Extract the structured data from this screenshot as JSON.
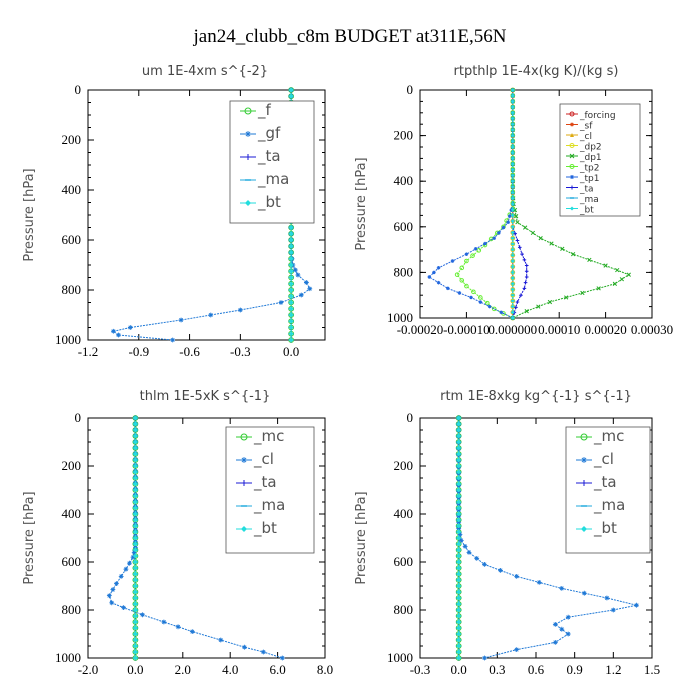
{
  "title": "jan24_clubb_c8m  BUDGET at311E,56N",
  "chart_data": [
    {
      "type": "line",
      "title": "um   1E-4xm  s^{-2}",
      "ylabel": "Pressure [hPa]",
      "xticks": [
        "-1.2",
        "-0.9",
        "-0.6",
        "-0.3",
        "0.0"
      ],
      "xlim": [
        -1.2,
        0.2
      ],
      "yticks": [
        "0",
        "200",
        "400",
        "600",
        "800",
        "1000"
      ],
      "ylim": [
        0,
        1000
      ],
      "legend_position": "top-right",
      "series": [
        {
          "name": "_f",
          "color": "#33cc33",
          "marker": "circle",
          "points": [
            [
              0.0,
              0
            ],
            [
              0.0,
              200
            ],
            [
              0.0,
              400
            ],
            [
              0.0,
              600
            ],
            [
              0.0,
              800
            ],
            [
              0.0,
              1000
            ]
          ]
        },
        {
          "name": "_gf",
          "color": "#1e78d6",
          "marker": "star",
          "points": [
            [
              0.0,
              0
            ],
            [
              0.0,
              500
            ],
            [
              0.0,
              650
            ],
            [
              0.01,
              700
            ],
            [
              0.04,
              740
            ],
            [
              0.09,
              770
            ],
            [
              0.11,
              795
            ],
            [
              0.06,
              820
            ],
            [
              -0.06,
              850
            ],
            [
              -0.3,
              880
            ],
            [
              -0.65,
              920
            ],
            [
              -0.95,
              950
            ],
            [
              -1.05,
              965
            ],
            [
              -1.02,
              980
            ],
            [
              -0.7,
              1000
            ]
          ]
        },
        {
          "name": "_ta",
          "color": "#1a1ad6",
          "marker": "plus",
          "points": [
            [
              0.0,
              0
            ],
            [
              0.0,
              1000
            ]
          ]
        },
        {
          "name": "_ma",
          "color": "#22aadd",
          "marker": "dash",
          "points": [
            [
              0.0,
              0
            ],
            [
              0.0,
              1000
            ]
          ]
        },
        {
          "name": "_bt",
          "color": "#22dddd",
          "marker": "diamond",
          "points": [
            [
              0.0,
              0
            ],
            [
              0.0,
              1000
            ]
          ]
        }
      ]
    },
    {
      "type": "line",
      "title": "rtpthlp   1E-4x(kg K)/(kg s)",
      "ylabel": "Pressure [hPa]",
      "xticks": [
        "-0.00020",
        "-0.00010",
        "0.000000",
        "0.00010",
        "0.00020",
        "0.00030"
      ],
      "xlim": [
        -0.0002,
        0.0003
      ],
      "yticks": [
        "0",
        "200",
        "400",
        "600",
        "800",
        "1000"
      ],
      "ylim": [
        0,
        1000
      ],
      "legend_position": "top-right",
      "series": [
        {
          "name": "_forcing",
          "color": "#cc2222",
          "marker": "circle",
          "points": [
            [
              0,
              0
            ],
            [
              0,
              1000
            ]
          ]
        },
        {
          "name": "_sf",
          "color": "#dd4411",
          "marker": "star",
          "points": [
            [
              0,
              0
            ],
            [
              0,
              1000
            ]
          ]
        },
        {
          "name": "_cl",
          "color": "#ddaa11",
          "marker": "triangle",
          "points": [
            [
              0,
              0
            ],
            [
              0,
              1000
            ]
          ]
        },
        {
          "name": "_dp2",
          "color": "#dddd22",
          "marker": "circle",
          "points": [
            [
              0,
              0
            ],
            [
              0,
              1000
            ]
          ]
        },
        {
          "name": "_dp1",
          "color": "#22aa22",
          "marker": "cross",
          "points": [
            [
              0,
              0
            ],
            [
              0,
              450
            ],
            [
              2e-06,
              500
            ],
            [
              1e-05,
              580
            ],
            [
              6e-05,
              650
            ],
            [
              0.00013,
              720
            ],
            [
              0.0002,
              770
            ],
            [
              0.00025,
              810
            ],
            [
              0.00022,
              850
            ],
            [
              0.00015,
              890
            ],
            [
              8e-05,
              930
            ],
            [
              3e-05,
              970
            ],
            [
              0,
              1000
            ]
          ]
        },
        {
          "name": "_tp2",
          "color": "#66ee33",
          "marker": "circle",
          "points": [
            [
              0,
              0
            ],
            [
              0,
              520
            ],
            [
              -2e-05,
              600
            ],
            [
              -6e-05,
              680
            ],
            [
              -0.0001,
              750
            ],
            [
              -0.00012,
              810
            ],
            [
              -0.0001,
              860
            ],
            [
              -7e-05,
              910
            ],
            [
              -4e-05,
              960
            ],
            [
              0,
              1000
            ]
          ]
        },
        {
          "name": "_tp1",
          "color": "#2266dd",
          "marker": "star",
          "points": [
            [
              0,
              0
            ],
            [
              0,
              500
            ],
            [
              -1e-05,
              580
            ],
            [
              -4e-05,
              650
            ],
            [
              -0.0001,
              720
            ],
            [
              -0.00016,
              780
            ],
            [
              -0.00018,
              820
            ],
            [
              -0.00014,
              870
            ],
            [
              -9e-05,
              910
            ],
            [
              -5e-05,
              950
            ],
            [
              0,
              1000
            ]
          ]
        },
        {
          "name": "_ta",
          "color": "#1a1ad6",
          "marker": "plus",
          "points": [
            [
              0,
              0
            ],
            [
              0,
              600
            ],
            [
              1e-05,
              660
            ],
            [
              2e-05,
              720
            ],
            [
              3e-05,
              770
            ],
            [
              3e-05,
              820
            ],
            [
              2.5e-05,
              870
            ],
            [
              1e-05,
              930
            ],
            [
              0,
              1000
            ]
          ]
        },
        {
          "name": "_ma",
          "color": "#22aadd",
          "marker": "dash",
          "points": [
            [
              0,
              0
            ],
            [
              0,
              1000
            ]
          ]
        },
        {
          "name": "_bt",
          "color": "#22dddd",
          "marker": "diamond",
          "points": [
            [
              0,
              0
            ],
            [
              0,
              1000
            ]
          ]
        }
      ]
    },
    {
      "type": "line",
      "title": "thlm   1E-5xK  s^{-1}",
      "ylabel": "Pressure [hPa]",
      "xticks": [
        "-2.0",
        "0.0",
        "2.0",
        "4.0",
        "6.0",
        "8.0"
      ],
      "xlim": [
        -2.0,
        8.0
      ],
      "yticks": [
        "0",
        "200",
        "400",
        "600",
        "800",
        "1000"
      ],
      "ylim": [
        0,
        1000
      ],
      "legend_position": "top-right",
      "series": [
        {
          "name": "_mc",
          "color": "#33cc33",
          "marker": "circle",
          "points": [
            [
              0,
              0
            ],
            [
              0,
              200
            ],
            [
              0,
              400
            ],
            [
              0,
              600
            ],
            [
              0,
              800
            ],
            [
              0,
              1000
            ]
          ]
        },
        {
          "name": "_cl",
          "color": "#1e78d6",
          "marker": "star",
          "points": [
            [
              0,
              0
            ],
            [
              0,
              540
            ],
            [
              -0.1,
              580
            ],
            [
              -0.4,
              630
            ],
            [
              -0.8,
              690
            ],
            [
              -1.1,
              740
            ],
            [
              -1.0,
              770
            ],
            [
              -0.5,
              790
            ],
            [
              0.3,
              820
            ],
            [
              1.2,
              850
            ],
            [
              2.4,
              890
            ],
            [
              3.6,
              925
            ],
            [
              4.6,
              955
            ],
            [
              5.4,
              975
            ],
            [
              6.2,
              1000
            ]
          ]
        },
        {
          "name": "_ta",
          "color": "#1a1ad6",
          "marker": "plus",
          "points": [
            [
              0,
              0
            ],
            [
              0,
              1000
            ]
          ]
        },
        {
          "name": "_ma",
          "color": "#22aadd",
          "marker": "dash",
          "points": [
            [
              0,
              0
            ],
            [
              0,
              1000
            ]
          ]
        },
        {
          "name": "_bt",
          "color": "#22dddd",
          "marker": "diamond",
          "points": [
            [
              0,
              0
            ],
            [
              0,
              1000
            ]
          ]
        }
      ]
    },
    {
      "type": "line",
      "title": "rtm   1E-8xkg  kg^{-1}  s^{-1}",
      "ylabel": "Pressure [hPa]",
      "xticks": [
        "-0.3",
        "0.0",
        "0.3",
        "0.6",
        "0.9",
        "1.2",
        "1.5"
      ],
      "xlim": [
        -0.3,
        1.5
      ],
      "yticks": [
        "0",
        "200",
        "400",
        "600",
        "800",
        "1000"
      ],
      "ylim": [
        0,
        1000
      ],
      "legend_position": "top-right",
      "series": [
        {
          "name": "_mc",
          "color": "#33cc33",
          "marker": "circle",
          "points": [
            [
              0,
              0
            ],
            [
              0,
              200
            ],
            [
              0,
              400
            ],
            [
              0,
              600
            ],
            [
              0,
              800
            ],
            [
              0,
              1000
            ]
          ]
        },
        {
          "name": "_cl",
          "color": "#1e78d6",
          "marker": "star",
          "points": [
            [
              0,
              0
            ],
            [
              0,
              460
            ],
            [
              0.02,
              510
            ],
            [
              0.08,
              560
            ],
            [
              0.2,
              610
            ],
            [
              0.45,
              660
            ],
            [
              0.8,
              710
            ],
            [
              1.15,
              750
            ],
            [
              1.38,
              780
            ],
            [
              1.2,
              800
            ],
            [
              0.85,
              830
            ],
            [
              0.75,
              860
            ],
            [
              0.85,
              900
            ],
            [
              0.75,
              935
            ],
            [
              0.45,
              965
            ],
            [
              0.2,
              1000
            ]
          ]
        },
        {
          "name": "_ta",
          "color": "#1a1ad6",
          "marker": "plus",
          "points": [
            [
              0,
              0
            ],
            [
              0,
              1000
            ]
          ]
        },
        {
          "name": "_ma",
          "color": "#22aadd",
          "marker": "dash",
          "points": [
            [
              0,
              0
            ],
            [
              0,
              1000
            ]
          ]
        },
        {
          "name": "_bt",
          "color": "#22dddd",
          "marker": "diamond",
          "points": [
            [
              0,
              0
            ],
            [
              0,
              1000
            ]
          ]
        }
      ]
    }
  ]
}
